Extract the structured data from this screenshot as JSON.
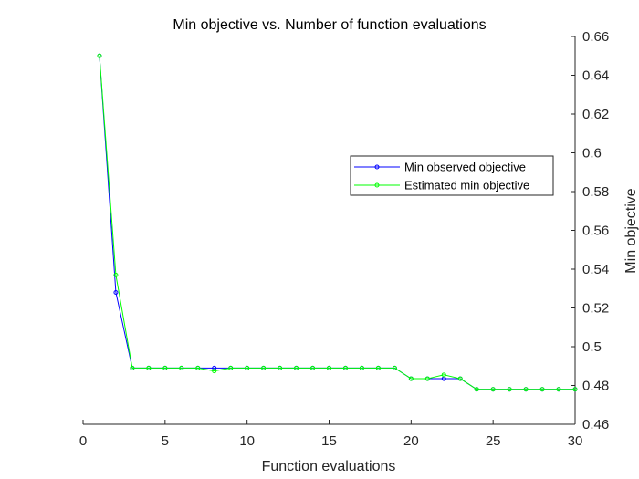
{
  "chart_data": {
    "type": "line",
    "title": "Min objective vs. Number of function evaluations",
    "xlabel": "Function evaluations",
    "ylabel": "Min objective",
    "xlim": [
      0,
      30
    ],
    "ylim": [
      0.46,
      0.66
    ],
    "xticks": [
      0,
      5,
      10,
      15,
      20,
      25,
      30
    ],
    "yticks": [
      0.46,
      0.48,
      0.5,
      0.52,
      0.54,
      0.56,
      0.58,
      0.6,
      0.62,
      0.64,
      0.66
    ],
    "ytick_labels": [
      "0.46",
      "0.48",
      "0.5",
      "0.52",
      "0.54",
      "0.56",
      "0.58",
      "0.6",
      "0.62",
      "0.64",
      "0.66"
    ],
    "y_axis_location": "right",
    "grid": false,
    "legend_position": "right",
    "x": [
      1,
      2,
      3,
      4,
      5,
      6,
      7,
      8,
      9,
      10,
      11,
      12,
      13,
      14,
      15,
      16,
      17,
      18,
      19,
      20,
      21,
      22,
      23,
      24,
      25,
      26,
      27,
      28,
      29,
      30
    ],
    "series": [
      {
        "name": "Min observed objective",
        "color": "#0000ff",
        "values": [
          0.65,
          0.528,
          0.489,
          0.489,
          0.489,
          0.489,
          0.489,
          0.489,
          0.489,
          0.489,
          0.489,
          0.489,
          0.489,
          0.489,
          0.489,
          0.489,
          0.489,
          0.489,
          0.489,
          0.4835,
          0.4835,
          0.4835,
          0.4835,
          0.478,
          0.478,
          0.478,
          0.478,
          0.478,
          0.478,
          0.478
        ]
      },
      {
        "name": "Estimated min objective",
        "color": "#00ff00",
        "values": [
          0.65,
          0.537,
          0.489,
          0.489,
          0.489,
          0.489,
          0.489,
          0.4875,
          0.489,
          0.489,
          0.489,
          0.489,
          0.489,
          0.489,
          0.489,
          0.489,
          0.489,
          0.489,
          0.489,
          0.4835,
          0.4835,
          0.4855,
          0.4835,
          0.478,
          0.478,
          0.478,
          0.478,
          0.478,
          0.478,
          0.478
        ]
      }
    ]
  }
}
